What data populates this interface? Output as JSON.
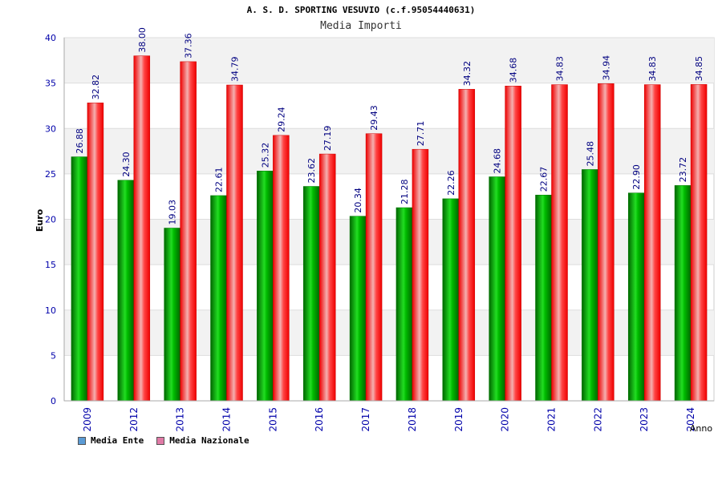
{
  "header": {
    "title": "A. S. D. SPORTING VESUVIO (c.f.95054440631)",
    "subtitle": "Media Importi"
  },
  "legend": {
    "items": [
      {
        "label": "Media Ente",
        "color": "#5b9bd5"
      },
      {
        "label": "Media Nazionale",
        "color": "#e07aa6"
      }
    ]
  },
  "chart_data": {
    "type": "bar",
    "title": "A. S. D. SPORTING VESUVIO (c.f.95054440631)",
    "subtitle": "Media Importi",
    "xlabel": "Anno",
    "ylabel": "Euro",
    "ylim": [
      0,
      40
    ],
    "yticks": [
      0,
      5,
      10,
      15,
      20,
      25,
      30,
      35,
      40
    ],
    "grid": true,
    "legend_position": "bottom-left",
    "categories": [
      "2009",
      "2012",
      "2013",
      "2014",
      "2015",
      "2016",
      "2017",
      "2018",
      "2019",
      "2020",
      "2021",
      "2022",
      "2023",
      "2024"
    ],
    "series": [
      {
        "name": "Media Ente",
        "color": "#00cc00",
        "values": [
          26.88,
          24.3,
          19.03,
          22.61,
          25.32,
          23.62,
          20.34,
          21.28,
          22.26,
          24.68,
          22.67,
          25.48,
          22.9,
          23.72
        ],
        "labels": [
          "26.88",
          "24.30",
          "19.03",
          "22.61",
          "25.32",
          "23.62",
          "20.34",
          "21.28",
          "22.26",
          "24.68",
          "22.67",
          "25.48",
          "22.90",
          "23.72"
        ]
      },
      {
        "name": "Media Nazionale",
        "color": "#ee1111",
        "values": [
          32.82,
          38.0,
          37.36,
          34.79,
          29.24,
          27.19,
          29.43,
          27.71,
          34.32,
          34.68,
          34.83,
          34.94,
          34.83,
          34.85
        ],
        "labels": [
          "32.82",
          "38.00",
          "37.36",
          "34.79",
          "29.24",
          "27.19",
          "29.43",
          "27.71",
          "34.32",
          "34.68",
          "34.83",
          "34.94",
          "34.83",
          "34.85"
        ]
      }
    ]
  }
}
